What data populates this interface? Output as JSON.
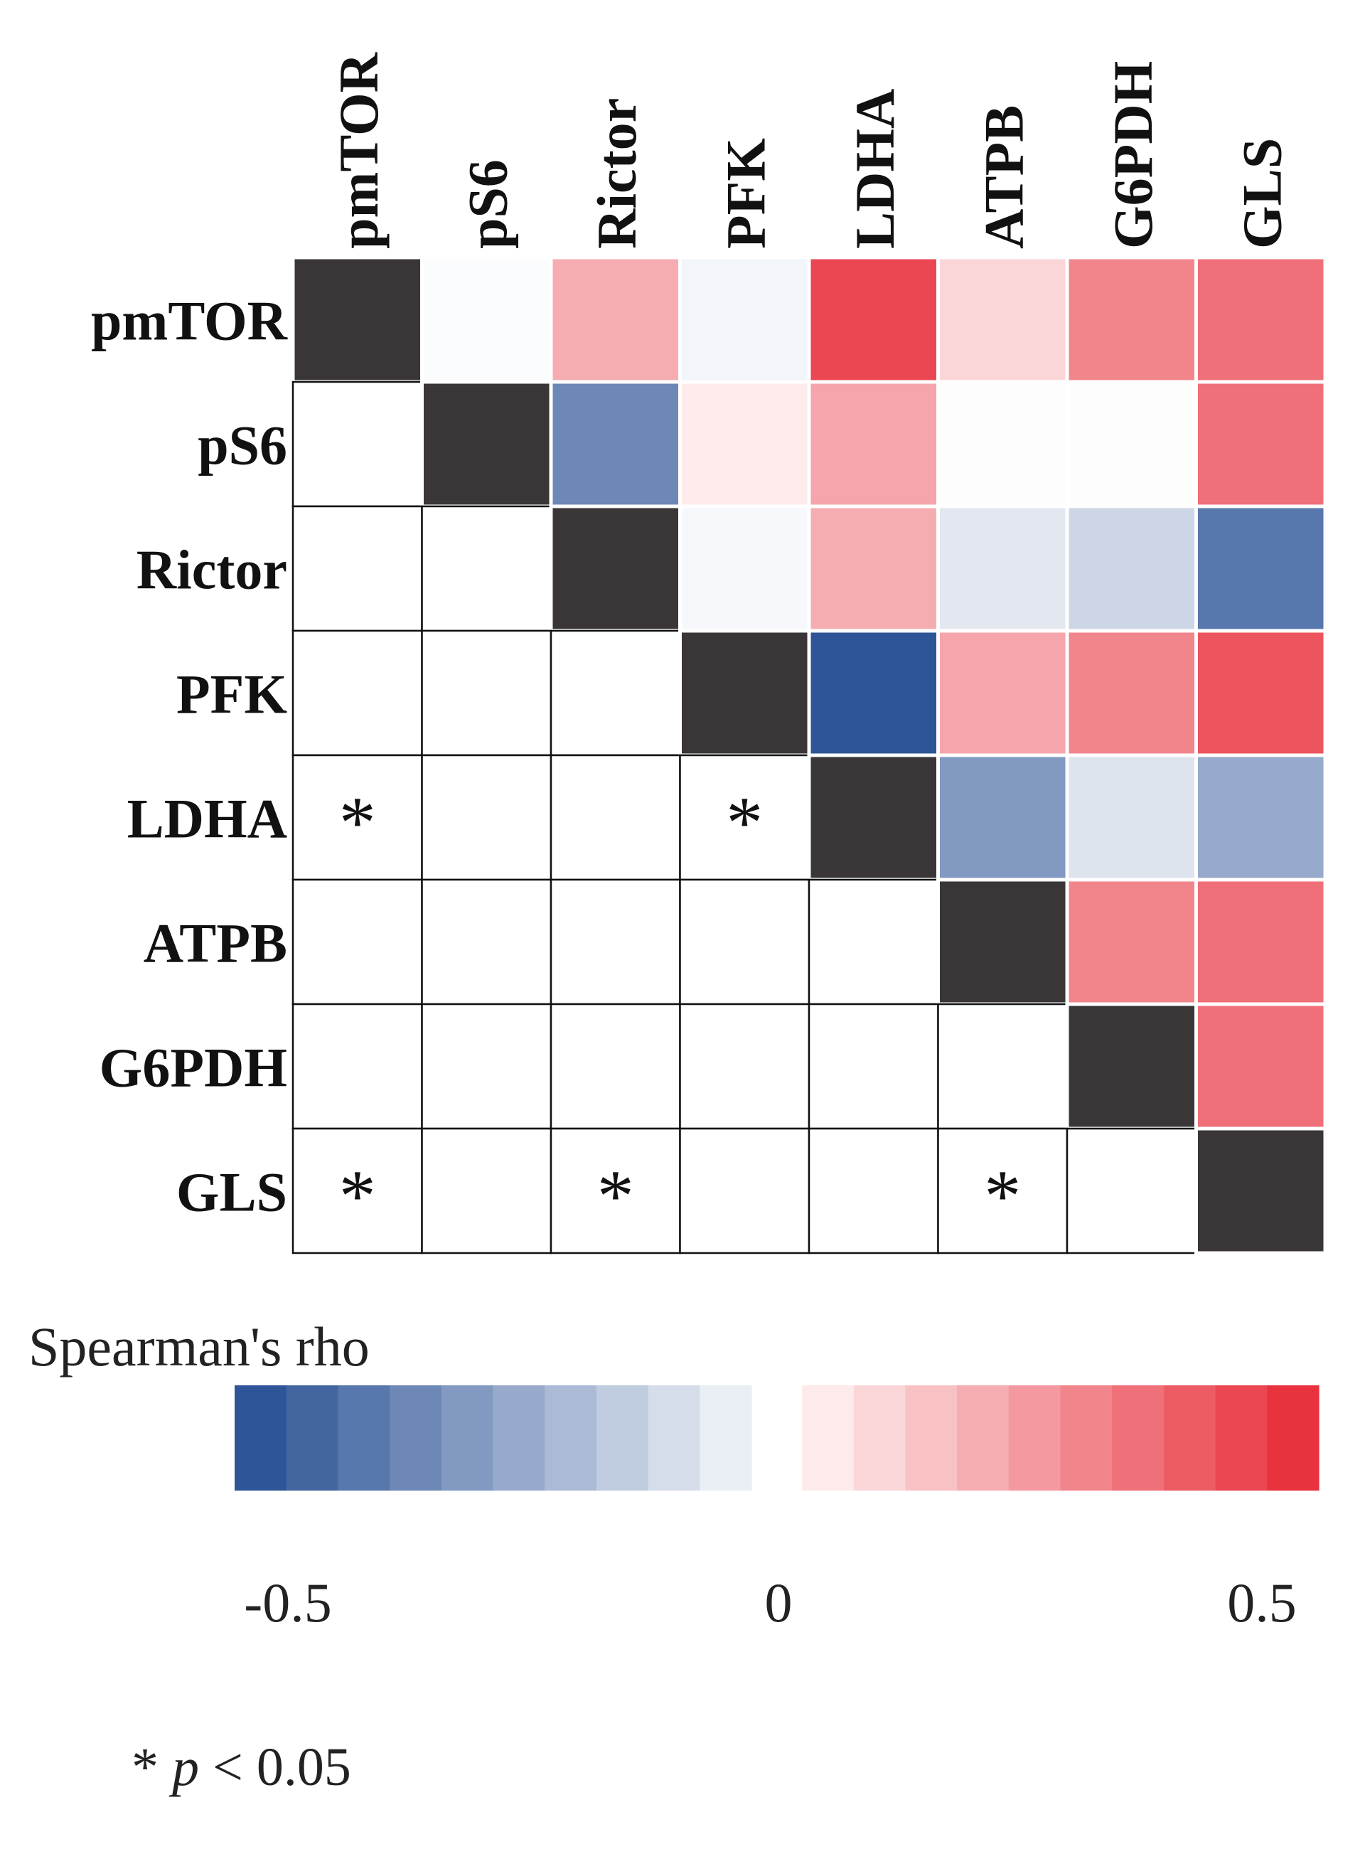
{
  "chart_data": {
    "type": "heatmap",
    "variables": [
      "pmTOR",
      "pS6",
      "Rictor",
      "PFK",
      "LDHA",
      "ATPB",
      "G6PDH",
      "GLS"
    ],
    "upper_values": [
      [
        null,
        -0.01,
        0.2,
        -0.03,
        0.45,
        0.1,
        0.3,
        0.35
      ],
      [
        null,
        null,
        -0.35,
        0.05,
        0.22,
        -0.005,
        -0.005,
        0.35
      ],
      [
        null,
        null,
        null,
        -0.02,
        0.2,
        -0.07,
        -0.12,
        -0.4
      ],
      [
        null,
        null,
        null,
        null,
        -0.5,
        0.22,
        0.3,
        0.42
      ],
      [
        null,
        null,
        null,
        null,
        null,
        -0.3,
        -0.08,
        -0.25
      ],
      [
        null,
        null,
        null,
        null,
        null,
        null,
        0.3,
        0.35
      ],
      [
        null,
        null,
        null,
        null,
        null,
        null,
        null,
        0.35
      ],
      [
        null,
        null,
        null,
        null,
        null,
        null,
        null,
        null
      ]
    ],
    "significance_marks": [
      {
        "row": 4,
        "col": 0,
        "mark": "*"
      },
      {
        "row": 4,
        "col": 3,
        "mark": "*"
      },
      {
        "row": 7,
        "col": 0,
        "mark": "*"
      },
      {
        "row": 7,
        "col": 2,
        "mark": "*"
      },
      {
        "row": 7,
        "col": 5,
        "mark": "*"
      }
    ],
    "legend": {
      "title": "Spearman's rho",
      "min": -0.5,
      "max": 0.5,
      "ticks": [
        {
          "value": -0.5,
          "label": "-0.5"
        },
        {
          "value": 0,
          "label": "0"
        },
        {
          "value": 0.5,
          "label": "0.5"
        }
      ],
      "steps_per_side": 10,
      "negative_color": "#2e5597",
      "positive_color": "#e8333f",
      "zero_color": "#ffffff"
    },
    "diagonal_color": "#3a3637",
    "footnote": {
      "mark": "* ",
      "p": "p",
      "rest": " < 0.05"
    }
  }
}
